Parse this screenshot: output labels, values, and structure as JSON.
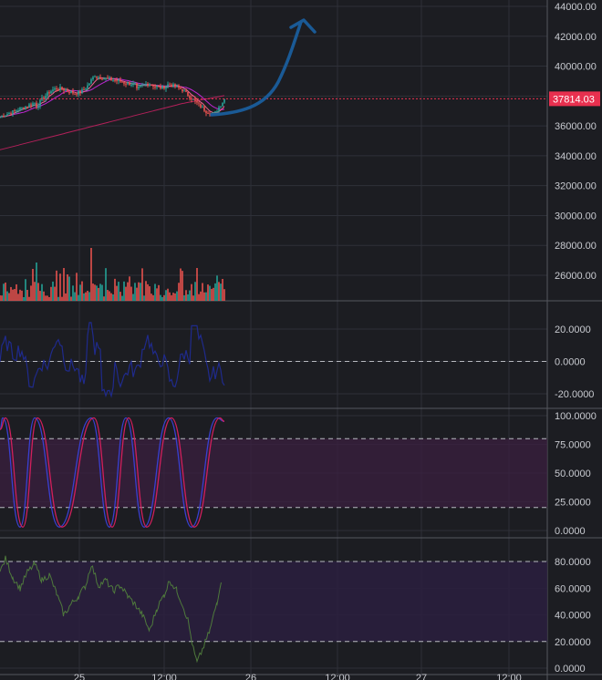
{
  "price_pane": {
    "axis_ticks": [
      "44000.00",
      "42000.00",
      "40000.00",
      "38000.00",
      "36000.00",
      "34000.00",
      "32000.00",
      "30000.00",
      "28000.00",
      "26000.00"
    ],
    "tick_values": [
      44000,
      42000,
      40000,
      38000,
      36000,
      34000,
      32000,
      30000,
      28000,
      26000
    ],
    "current_price_label": "37814.03",
    "current_price": 37814.03,
    "arrow_color": "#1a5a96",
    "price_marker_color": "#e8304f"
  },
  "oscillator_pane_1": {
    "axis_ticks": [
      "20.0000",
      "0.0000",
      "-20.0000"
    ],
    "tick_values": [
      20,
      0,
      -20
    ],
    "line_color": "#1f2a8c"
  },
  "stochastic_pane": {
    "axis_ticks": [
      "100.0000",
      "75.0000",
      "50.0000",
      "25.0000",
      "0.0000"
    ],
    "tick_values": [
      100,
      75,
      50,
      25,
      0
    ],
    "k_color": "#3a3fd0",
    "d_color": "#d01f5c",
    "band_color": "#3a1f3f"
  },
  "rsi_pane": {
    "axis_ticks": [
      "80.0000",
      "60.0000",
      "40.0000",
      "20.0000",
      "0.0000"
    ],
    "tick_values": [
      80,
      60,
      40,
      20,
      0
    ],
    "line_color": "#4f7a3c",
    "band_color": "#2a1f3e"
  },
  "time_axis": {
    "labels": [
      "25",
      "12:00",
      "26",
      "12:00",
      "27",
      "12:00"
    ]
  },
  "colors": {
    "background": "#1c1d22",
    "grid": "#2e3038",
    "up": "#26a69a",
    "down": "#ef5350"
  }
}
